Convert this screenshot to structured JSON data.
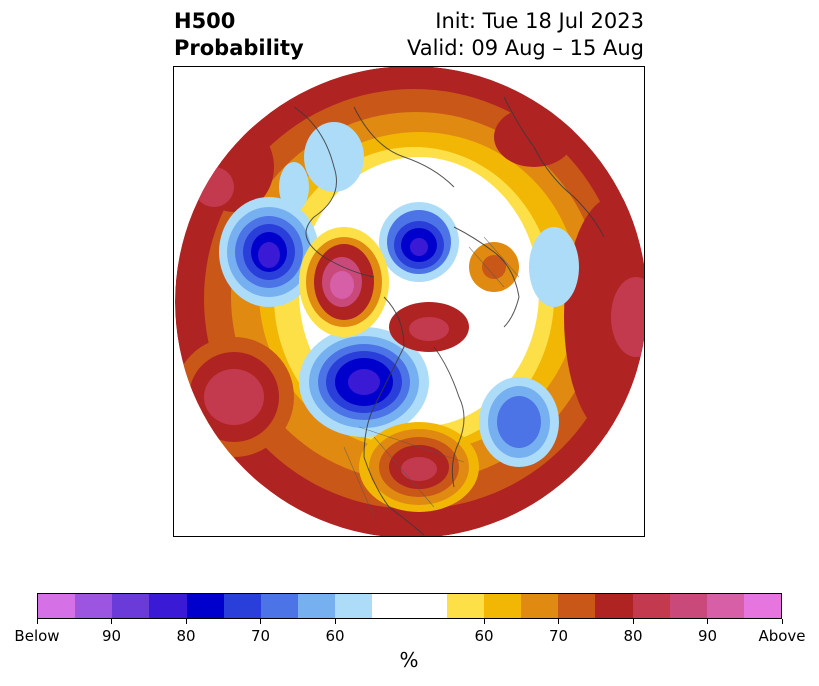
{
  "header": {
    "title_line1": "H500",
    "title_line2": "Probability",
    "init_text": "Init: Tue 18 Jul 2023",
    "valid_text": "Valid: 09 Aug – 15 Aug"
  },
  "map": {
    "projection": "north-polar-stereographic",
    "field": "500 hPa height anomaly probability",
    "regions": [
      {
        "name": "below-western-north-pacific",
        "category": "Below"
      },
      {
        "name": "below-north-of-siberia",
        "category": "Below"
      },
      {
        "name": "below-hudson-bay-canada",
        "category": "Below"
      },
      {
        "name": "below-north-atlantic",
        "category": "Below"
      },
      {
        "name": "above-alaska-bering",
        "category": "Above"
      },
      {
        "name": "above-central-eastern-us",
        "category": "Above"
      },
      {
        "name": "above-central-pacific",
        "category": "Above"
      },
      {
        "name": "above-europe-asia",
        "category": "Above"
      }
    ]
  },
  "colorbar": {
    "colors": [
      "#d670e6",
      "#9b55e0",
      "#6a3bd9",
      "#3a1ad4",
      "#0000cc",
      "#2a3fd9",
      "#4d74e6",
      "#77b0f0",
      "#acdcf7",
      "#ffffff",
      "#ffffff",
      "#fde047",
      "#f2b705",
      "#e08a12",
      "#c95718",
      "#b02323",
      "#c33a4f",
      "#c94a7a",
      "#d65fa8",
      "#e675e0"
    ],
    "tick_labels": [
      "Below",
      "90",
      "80",
      "70",
      "60",
      "60",
      "70",
      "80",
      "90",
      "Above"
    ],
    "unit_label": "%"
  }
}
